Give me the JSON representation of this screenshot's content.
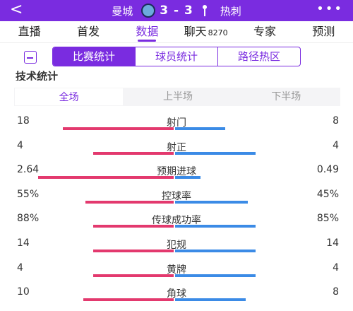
{
  "header": {
    "back_glyph": "<",
    "home_team": "曼城",
    "away_team": "热刺",
    "score": "3 - 3",
    "more_glyph": "•••",
    "home_crest_icon": "man-city-crest-icon",
    "away_crest_icon": "spurs-crest-icon"
  },
  "tabs": [
    {
      "label": "直播",
      "count": ""
    },
    {
      "label": "首发",
      "count": ""
    },
    {
      "label": "数据",
      "count": "",
      "active": true
    },
    {
      "label": "聊天",
      "count": "8270"
    },
    {
      "label": "专家",
      "count": ""
    },
    {
      "label": "预测",
      "count": ""
    }
  ],
  "subnav": {
    "items": [
      "比赛统计",
      "球员统计",
      "路径热区"
    ],
    "active_index": 0,
    "icon": "share-card-icon"
  },
  "section_title": "技术统计",
  "periods": [
    "全场",
    "上半场",
    "下半场"
  ],
  "active_period": 0,
  "colors": {
    "accent": "#7a2ce0",
    "home_bar": "#e3396e",
    "away_bar": "#3b8be6"
  },
  "stats": [
    {
      "name": "射门",
      "home": "18",
      "away": "8",
      "home_share": 0.69,
      "away_share": 0.31
    },
    {
      "name": "射正",
      "home": "4",
      "away": "4",
      "home_share": 0.5,
      "away_share": 0.5
    },
    {
      "name": "预期进球",
      "home": "2.64",
      "away": "0.49",
      "home_share": 0.84,
      "away_share": 0.16
    },
    {
      "name": "控球率",
      "home": "55%",
      "away": "45%",
      "home_share": 0.55,
      "away_share": 0.45
    },
    {
      "name": "传球成功率",
      "home": "88%",
      "away": "85%",
      "home_share": 0.5,
      "away_share": 0.5
    },
    {
      "name": "犯规",
      "home": "14",
      "away": "14",
      "home_share": 0.5,
      "away_share": 0.5
    },
    {
      "name": "黄牌",
      "home": "4",
      "away": "4",
      "home_share": 0.5,
      "away_share": 0.5
    },
    {
      "name": "角球",
      "home": "10",
      "away": "8",
      "home_share": 0.56,
      "away_share": 0.44
    }
  ]
}
